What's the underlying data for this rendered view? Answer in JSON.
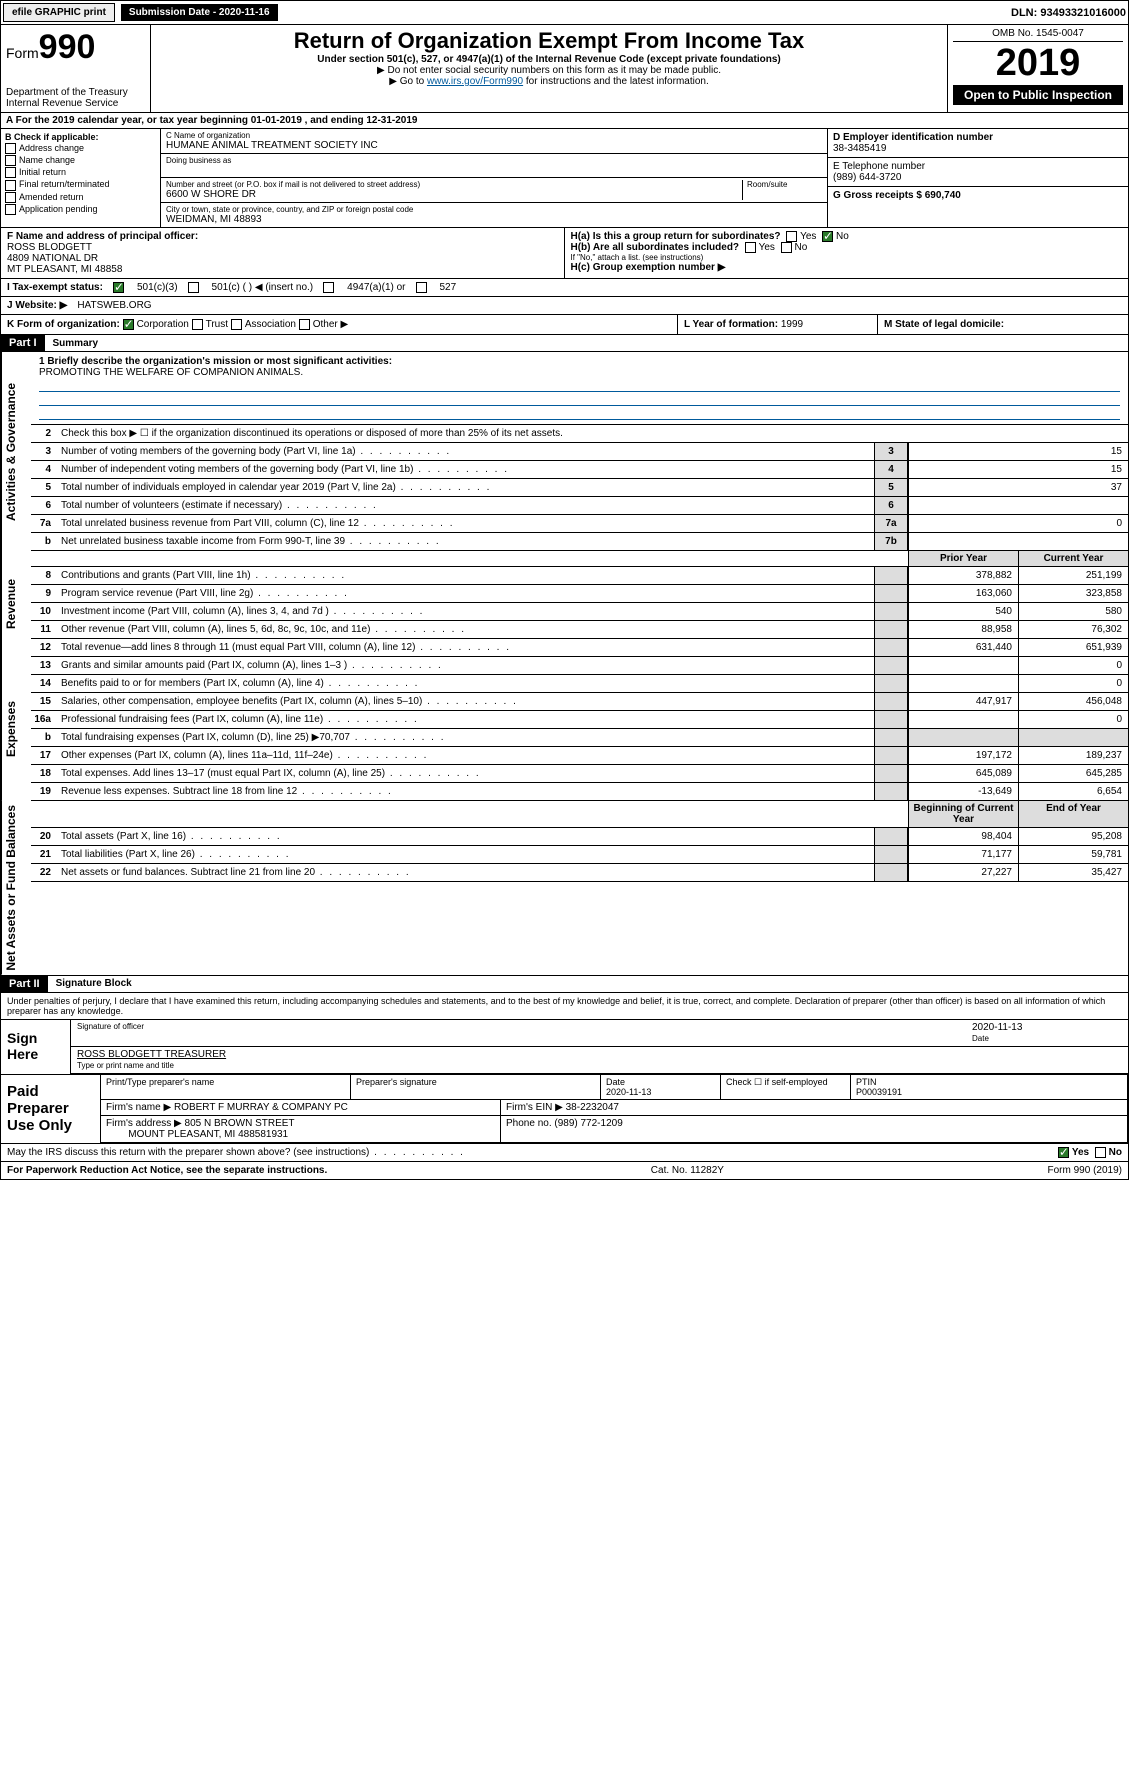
{
  "top": {
    "efile": "efile GRAPHIC print",
    "subdate_label": "Submission Date - ",
    "subdate": "2020-11-16",
    "dln_label": "DLN: ",
    "dln": "93493321016000"
  },
  "header": {
    "form_word": "Form",
    "form_no": "990",
    "dept": "Department of the Treasury\nInternal Revenue Service",
    "title": "Return of Organization Exempt From Income Tax",
    "sub1": "Under section 501(c), 527, or 4947(a)(1) of the Internal Revenue Code (except private foundations)",
    "sub2": "▶ Do not enter social security numbers on this form as it may be made public.",
    "sub3_pre": "▶ Go to ",
    "sub3_link": "www.irs.gov/Form990",
    "sub3_post": " for instructions and the latest information.",
    "omb": "OMB No. 1545-0047",
    "year": "2019",
    "open": "Open to Public Inspection"
  },
  "taxyear": {
    "label": "A For the 2019 calendar year, or tax year beginning ",
    "begin": "01-01-2019",
    "mid": " , and ending ",
    "end": "12-31-2019"
  },
  "checkif": {
    "label": "B Check if applicable:",
    "opts": [
      "Address change",
      "Name change",
      "Initial return",
      "Final return/terminated",
      "Amended return",
      "Application pending"
    ]
  },
  "org": {
    "name_label": "C Name of organization",
    "name": "HUMANE ANIMAL TREATMENT SOCIETY INC",
    "dba_label": "Doing business as",
    "addr_label": "Number and street (or P.O. box if mail is not delivered to street address)",
    "room": "Room/suite",
    "addr": "6600 W SHORE DR",
    "city_label": "City or town, state or province, country, and ZIP or foreign postal code",
    "city": "WEIDMAN, MI  48893"
  },
  "right": {
    "ein_label": "D Employer identification number",
    "ein": "38-3485419",
    "tel_label": "E Telephone number",
    "tel": "(989) 644-3720",
    "gross_label": "G Gross receipts $ ",
    "gross": "690,740"
  },
  "f": {
    "label": "F  Name and address of principal officer:",
    "l1": "ROSS BLODGETT",
    "l2": "4809 NATIONAL DR",
    "l3": "MT PLEASANT, MI  48858"
  },
  "h": {
    "ha": "H(a)  Is this a group return for subordinates?",
    "hb": "H(b)  Are all subordinates included?",
    "hb_note": "If \"No,\" attach a list. (see instructions)",
    "hc": "H(c)  Group exemption number ▶",
    "yes": "Yes",
    "no": "No"
  },
  "status": {
    "label": "I  Tax-exempt status:",
    "o1": "501(c)(3)",
    "o2": "501(c) (  ) ◀ (insert no.)",
    "o3": "4947(a)(1) or",
    "o4": "527"
  },
  "website": {
    "label": "J  Website: ▶",
    "val": "HATSWEB.ORG"
  },
  "k": {
    "label": "K Form of organization:",
    "opts": [
      "Corporation",
      "Trust",
      "Association",
      "Other ▶"
    ],
    "l_label": "L Year of formation: ",
    "l_val": "1999",
    "m_label": "M State of legal domicile:",
    "m_val": ""
  },
  "part1": {
    "tag": "Part I",
    "title": "Summary"
  },
  "mission": {
    "q": "1  Briefly describe the organization's mission or most significant activities:",
    "text": "PROMOTING THE WELFARE OF COMPANION ANIMALS."
  },
  "gov_lines": [
    {
      "n": "2",
      "d": "Check this box ▶ ☐  if the organization discontinued its operations or disposed of more than 25% of its net assets."
    },
    {
      "n": "3",
      "d": "Number of voting members of the governing body (Part VI, line 1a)",
      "box": "3",
      "v": "15"
    },
    {
      "n": "4",
      "d": "Number of independent voting members of the governing body (Part VI, line 1b)",
      "box": "4",
      "v": "15"
    },
    {
      "n": "5",
      "d": "Total number of individuals employed in calendar year 2019 (Part V, line 2a)",
      "box": "5",
      "v": "37"
    },
    {
      "n": "6",
      "d": "Total number of volunteers (estimate if necessary)",
      "box": "6",
      "v": ""
    },
    {
      "n": "7a",
      "d": "Total unrelated business revenue from Part VIII, column (C), line 12",
      "box": "7a",
      "v": "0"
    },
    {
      "n": "b",
      "d": "Net unrelated business taxable income from Form 990-T, line 39",
      "box": "7b",
      "v": ""
    }
  ],
  "colhdr": {
    "prior": "Prior Year",
    "current": "Current Year"
  },
  "rev_lines": [
    {
      "n": "8",
      "d": "Contributions and grants (Part VIII, line 1h)",
      "p": "378,882",
      "c": "251,199"
    },
    {
      "n": "9",
      "d": "Program service revenue (Part VIII, line 2g)",
      "p": "163,060",
      "c": "323,858"
    },
    {
      "n": "10",
      "d": "Investment income (Part VIII, column (A), lines 3, 4, and 7d )",
      "p": "540",
      "c": "580"
    },
    {
      "n": "11",
      "d": "Other revenue (Part VIII, column (A), lines 5, 6d, 8c, 9c, 10c, and 11e)",
      "p": "88,958",
      "c": "76,302"
    },
    {
      "n": "12",
      "d": "Total revenue—add lines 8 through 11 (must equal Part VIII, column (A), line 12)",
      "p": "631,440",
      "c": "651,939"
    }
  ],
  "exp_lines": [
    {
      "n": "13",
      "d": "Grants and similar amounts paid (Part IX, column (A), lines 1–3 )",
      "p": "",
      "c": "0"
    },
    {
      "n": "14",
      "d": "Benefits paid to or for members (Part IX, column (A), line 4)",
      "p": "",
      "c": "0"
    },
    {
      "n": "15",
      "d": "Salaries, other compensation, employee benefits (Part IX, column (A), lines 5–10)",
      "p": "447,917",
      "c": "456,048"
    },
    {
      "n": "16a",
      "d": "Professional fundraising fees (Part IX, column (A), line 11e)",
      "p": "",
      "c": "0"
    },
    {
      "n": "b",
      "d": "Total fundraising expenses (Part IX, column (D), line 25) ▶70,707",
      "p": "",
      "c": "",
      "shade": true
    },
    {
      "n": "17",
      "d": "Other expenses (Part IX, column (A), lines 11a–11d, 11f–24e)",
      "p": "197,172",
      "c": "189,237"
    },
    {
      "n": "18",
      "d": "Total expenses. Add lines 13–17 (must equal Part IX, column (A), line 25)",
      "p": "645,089",
      "c": "645,285"
    },
    {
      "n": "19",
      "d": "Revenue less expenses. Subtract line 18 from line 12",
      "p": "-13,649",
      "c": "6,654"
    }
  ],
  "colhdr2": {
    "prior": "Beginning of Current Year",
    "current": "End of Year"
  },
  "net_lines": [
    {
      "n": "20",
      "d": "Total assets (Part X, line 16)",
      "p": "98,404",
      "c": "95,208"
    },
    {
      "n": "21",
      "d": "Total liabilities (Part X, line 26)",
      "p": "71,177",
      "c": "59,781"
    },
    {
      "n": "22",
      "d": "Net assets or fund balances. Subtract line 21 from line 20",
      "p": "27,227",
      "c": "35,427"
    }
  ],
  "part2": {
    "tag": "Part II",
    "title": "Signature Block"
  },
  "perjury": "Under penalties of perjury, I declare that I have examined this return, including accompanying schedules and statements, and to the best of my knowledge and belief, it is true, correct, and complete. Declaration of preparer (other than officer) is based on all information of which preparer has any knowledge.",
  "sign": {
    "here": "Sign Here",
    "sig_label": "Signature of officer",
    "date": "2020-11-13",
    "date_label": "Date",
    "name": "ROSS BLODGETT  TREASURER",
    "name_label": "Type or print name and title"
  },
  "prep": {
    "label": "Paid Preparer Use Only",
    "h1": "Print/Type preparer's name",
    "h2": "Preparer's signature",
    "h3": "Date",
    "h3v": "2020-11-13",
    "h4": "Check ☐ if self-employed",
    "h5": "PTIN",
    "ptin": "P00039191",
    "firm_label": "Firm's name    ▶",
    "firm": "ROBERT F MURRAY & COMPANY PC",
    "ein_label": "Firm's EIN ▶",
    "ein": "38-2232047",
    "addr_label": "Firm's address ▶",
    "addr1": "805 N BROWN STREET",
    "addr2": "MOUNT PLEASANT, MI  488581931",
    "phone_label": "Phone no. ",
    "phone": "(989) 772-1209"
  },
  "discuss": "May the IRS discuss this return with the preparer shown above? (see instructions)",
  "footer": {
    "l": "For Paperwork Reduction Act Notice, see the separate instructions.",
    "m": "Cat. No. 11282Y",
    "r": "Form 990 (2019)"
  },
  "vlabels": {
    "gov": "Activities & Governance",
    "rev": "Revenue",
    "exp": "Expenses",
    "net": "Net Assets or Fund Balances"
  }
}
